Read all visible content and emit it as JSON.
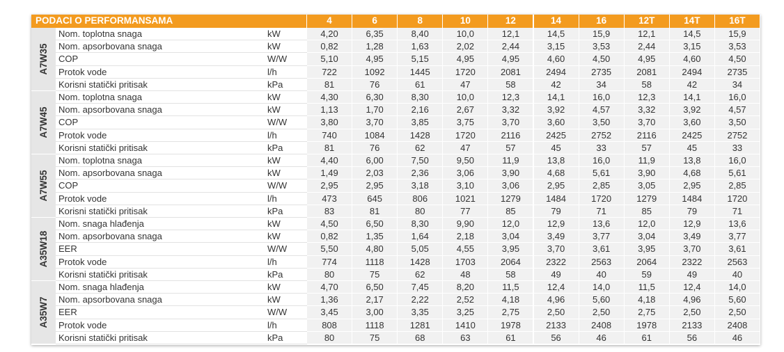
{
  "table": {
    "title": "PODACI O PERFORMANSAMA",
    "columns": [
      "4",
      "6",
      "8",
      "10",
      "12",
      "14",
      "16",
      "12T",
      "14T",
      "16T"
    ],
    "groups": [
      {
        "name": "A7W35",
        "rows": [
          {
            "label": "Nom. toplotna snaga",
            "unit": "kW",
            "values": [
              "4,20",
              "6,35",
              "8,40",
              "10,0",
              "12,1",
              "14,5",
              "15,9",
              "12,1",
              "14,5",
              "15,9"
            ]
          },
          {
            "label": "Nom. apsorbovana snaga",
            "unit": "kW",
            "values": [
              "0,82",
              "1,28",
              "1,63",
              "2,02",
              "2,44",
              "3,15",
              "3,53",
              "2,44",
              "3,15",
              "3,53"
            ]
          },
          {
            "label": "COP",
            "unit": "W/W",
            "values": [
              "5,10",
              "4,95",
              "5,15",
              "4,95",
              "4,95",
              "4,60",
              "4,50",
              "4,95",
              "4,60",
              "4,50"
            ]
          },
          {
            "label": "Protok vode",
            "unit": "l/h",
            "values": [
              "722",
              "1092",
              "1445",
              "1720",
              "2081",
              "2494",
              "2735",
              "2081",
              "2494",
              "2735"
            ]
          },
          {
            "label": "Korisni statički pritisak",
            "unit": "kPa",
            "values": [
              "81",
              "76",
              "61",
              "47",
              "58",
              "42",
              "34",
              "58",
              "42",
              "34"
            ]
          }
        ]
      },
      {
        "name": "A7W45",
        "rows": [
          {
            "label": "Nom. toplotna snaga",
            "unit": "kW",
            "values": [
              "4,30",
              "6,30",
              "8,30",
              "10,0",
              "12,3",
              "14,1",
              "16,0",
              "12,3",
              "14,1",
              "16,0"
            ]
          },
          {
            "label": "Nom. apsorbovana snaga",
            "unit": "kW",
            "values": [
              "1,13",
              "1,70",
              "2,16",
              "2,67",
              "3,32",
              "3,92",
              "4,57",
              "3,32",
              "3,92",
              "4,57"
            ]
          },
          {
            "label": "COP",
            "unit": "W/W",
            "values": [
              "3,80",
              "3,70",
              "3,85",
              "3,75",
              "3,70",
              "3,60",
              "3,50",
              "3,70",
              "3,60",
              "3,50"
            ]
          },
          {
            "label": "Protok vode",
            "unit": "l/h",
            "values": [
              "740",
              "1084",
              "1428",
              "1720",
              "2116",
              "2425",
              "2752",
              "2116",
              "2425",
              "2752"
            ]
          },
          {
            "label": "Korisni statički pritisak",
            "unit": "kPa",
            "values": [
              "81",
              "76",
              "62",
              "47",
              "57",
              "45",
              "33",
              "57",
              "45",
              "33"
            ]
          }
        ]
      },
      {
        "name": "A7W55",
        "rows": [
          {
            "label": "Nom. toplotna snaga",
            "unit": "kW",
            "values": [
              "4,40",
              "6,00",
              "7,50",
              "9,50",
              "11,9",
              "13,8",
              "16,0",
              "11,9",
              "13,8",
              "16,0"
            ]
          },
          {
            "label": "Nom. apsorbovana snaga",
            "unit": "kW",
            "values": [
              "1,49",
              "2,03",
              "2,36",
              "3,06",
              "3,90",
              "4,68",
              "5,61",
              "3,90",
              "4,68",
              "5,61"
            ]
          },
          {
            "label": "COP",
            "unit": "W/W",
            "values": [
              "2,95",
              "2,95",
              "3,18",
              "3,10",
              "3,06",
              "2,95",
              "2,85",
              "3,05",
              "2,95",
              "2,85"
            ]
          },
          {
            "label": "Protok vode",
            "unit": "l/h",
            "values": [
              "473",
              "645",
              "806",
              "1021",
              "1279",
              "1484",
              "1720",
              "1279",
              "1484",
              "1720"
            ]
          },
          {
            "label": "Korisni statički pritisak",
            "unit": "kPa",
            "values": [
              "83",
              "81",
              "80",
              "77",
              "85",
              "79",
              "71",
              "85",
              "79",
              "71"
            ]
          }
        ]
      },
      {
        "name": "A35W18",
        "rows": [
          {
            "label": "Nom. snaga hlađenja",
            "unit": "kW",
            "values": [
              "4,50",
              "6,50",
              "8,30",
              "9,90",
              "12,0",
              "12,9",
              "13,6",
              "12,0",
              "12,9",
              "13,6"
            ]
          },
          {
            "label": "Nom. apsorbovana snaga",
            "unit": "kW",
            "values": [
              "0,82",
              "1,35",
              "1,64",
              "2,18",
              "3,04",
              "3,49",
              "3,77",
              "3,04",
              "3,49",
              "3,77"
            ]
          },
          {
            "label": "EER",
            "unit": "W/W",
            "values": [
              "5,50",
              "4,80",
              "5,05",
              "4,55",
              "3,95",
              "3,70",
              "3,61",
              "3,95",
              "3,70",
              "3,61"
            ]
          },
          {
            "label": "Protok vode",
            "unit": "l/h",
            "values": [
              "774",
              "1118",
              "1428",
              "1703",
              "2064",
              "2322",
              "2563",
              "2064",
              "2322",
              "2563"
            ]
          },
          {
            "label": "Korisni statički pritisak",
            "unit": "kPa",
            "values": [
              "80",
              "75",
              "62",
              "48",
              "58",
              "49",
              "40",
              "59",
              "49",
              "40"
            ]
          }
        ]
      },
      {
        "name": "A35W7",
        "rows": [
          {
            "label": "Nom. snaga hlađenja",
            "unit": "kW",
            "values": [
              "4,70",
              "6,50",
              "7,45",
              "8,20",
              "11,5",
              "12,4",
              "14,0",
              "11,5",
              "12,4",
              "14,0"
            ]
          },
          {
            "label": "Nom. apsorbovana snaga",
            "unit": "kW",
            "values": [
              "1,36",
              "2,17",
              "2,22",
              "2,52",
              "4,18",
              "4,96",
              "5,60",
              "4,18",
              "4,96",
              "5,60"
            ]
          },
          {
            "label": "EER",
            "unit": "W/W",
            "values": [
              "3,45",
              "3,00",
              "3,35",
              "3,25",
              "2,75",
              "2,50",
              "2,50",
              "2,75",
              "2,50",
              "2,50"
            ]
          },
          {
            "label": "Protok vode",
            "unit": "l/h",
            "values": [
              "808",
              "1118",
              "1281",
              "1410",
              "1978",
              "2133",
              "2408",
              "1978",
              "2133",
              "2408"
            ]
          },
          {
            "label": "Korisni statički pritisak",
            "unit": "kPa",
            "values": [
              "80",
              "75",
              "68",
              "63",
              "61",
              "56",
              "46",
              "61",
              "56",
              "46"
            ]
          }
        ]
      }
    ]
  }
}
